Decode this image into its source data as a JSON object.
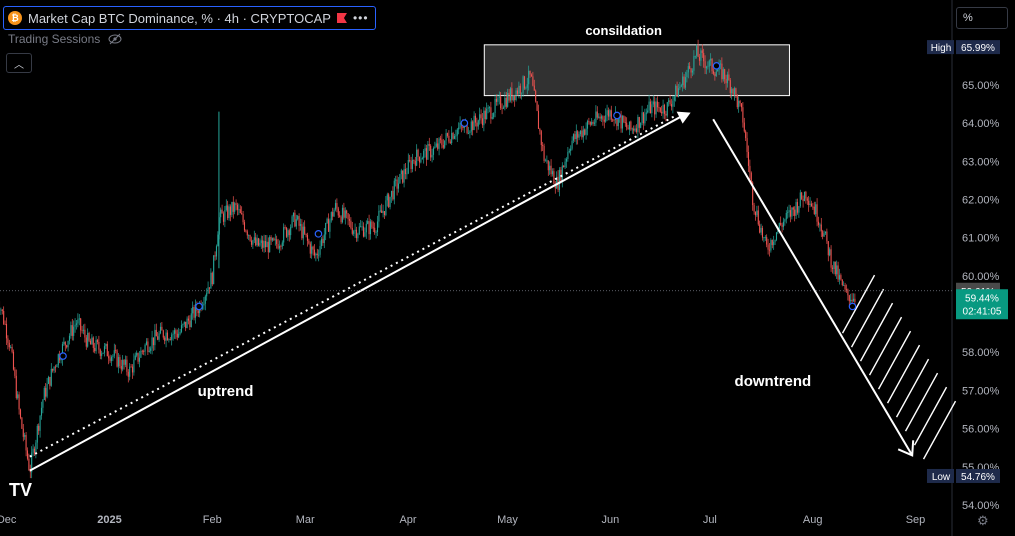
{
  "header": {
    "coin_icon": "bitcoin-icon",
    "title": "Market Cap BTC Dominance, % · 4h · CRYPTOCAP",
    "flag_icon": "flag-icon",
    "more_icon": "more-dots-icon",
    "sessions_label": "Trading Sessions",
    "sessions_icon": "eye-off-icon",
    "collapse_icon": "chevron-up-icon",
    "unit_box": "%"
  },
  "logo_text": "TV",
  "settings_icon": "gear-icon",
  "colors": {
    "up": "#26a69a",
    "down": "#ef5350",
    "arrow": "#ffffff",
    "box_fill": "#3a3a3a",
    "high_badge": "#1e2a4a",
    "last_badge": "#089981"
  },
  "chart_data": {
    "type": "candlestick",
    "interval": "4h",
    "y_unit": "%",
    "ylim": [
      54.0,
      66.7
    ],
    "y_ticks": [
      "54.00%",
      "55.00%",
      "56.00%",
      "57.00%",
      "58.00%",
      "59.00%",
      "60.00%",
      "61.00%",
      "62.00%",
      "63.00%",
      "64.00%",
      "65.00%"
    ],
    "x_ticks": [
      "Dec",
      "2025",
      "Feb",
      "Mar",
      "Apr",
      "May",
      "Jun",
      "Jul",
      "Aug",
      "Sep"
    ],
    "price_path": [
      {
        "x": "2024-11-28",
        "y": 59.6
      },
      {
        "x": "2024-12-02",
        "y": 58.2
      },
      {
        "x": "2024-12-05",
        "y": 56.3
      },
      {
        "x": "2024-12-08",
        "y": 54.9
      },
      {
        "x": "2024-12-12",
        "y": 56.8
      },
      {
        "x": "2024-12-16",
        "y": 57.8
      },
      {
        "x": "2024-12-22",
        "y": 58.8
      },
      {
        "x": "2024-12-26",
        "y": 58.2
      },
      {
        "x": "2025-01-01",
        "y": 58.0
      },
      {
        "x": "2025-01-07",
        "y": 57.5
      },
      {
        "x": "2025-01-12",
        "y": 58.2
      },
      {
        "x": "2025-01-17",
        "y": 58.5
      },
      {
        "x": "2025-01-22",
        "y": 58.5
      },
      {
        "x": "2025-01-28",
        "y": 59.2
      },
      {
        "x": "2025-02-01",
        "y": 60.0
      },
      {
        "x": "2025-02-03",
        "y": 61.5
      },
      {
        "x": "2025-02-08",
        "y": 61.8
      },
      {
        "x": "2025-02-14",
        "y": 60.8
      },
      {
        "x": "2025-02-20",
        "y": 60.8
      },
      {
        "x": "2025-02-26",
        "y": 61.5
      },
      {
        "x": "2025-03-04",
        "y": 60.5
      },
      {
        "x": "2025-03-10",
        "y": 61.8
      },
      {
        "x": "2025-03-16",
        "y": 61.2
      },
      {
        "x": "2025-03-22",
        "y": 61.3
      },
      {
        "x": "2025-03-28",
        "y": 62.3
      },
      {
        "x": "2025-04-03",
        "y": 63.1
      },
      {
        "x": "2025-04-09",
        "y": 63.3
      },
      {
        "x": "2025-04-15",
        "y": 63.8
      },
      {
        "x": "2025-04-21",
        "y": 64.0
      },
      {
        "x": "2025-04-27",
        "y": 64.4
      },
      {
        "x": "2025-05-03",
        "y": 64.8
      },
      {
        "x": "2025-05-08",
        "y": 65.2
      },
      {
        "x": "2025-05-12",
        "y": 63.1
      },
      {
        "x": "2025-05-16",
        "y": 62.4
      },
      {
        "x": "2025-05-20",
        "y": 63.5
      },
      {
        "x": "2025-05-26",
        "y": 64.0
      },
      {
        "x": "2025-06-01",
        "y": 64.3
      },
      {
        "x": "2025-06-07",
        "y": 63.8
      },
      {
        "x": "2025-06-13",
        "y": 64.4
      },
      {
        "x": "2025-06-18",
        "y": 64.4
      },
      {
        "x": "2025-06-23",
        "y": 65.1
      },
      {
        "x": "2025-06-27",
        "y": 65.8
      },
      {
        "x": "2025-07-01",
        "y": 65.5
      },
      {
        "x": "2025-07-05",
        "y": 65.3
      },
      {
        "x": "2025-07-08",
        "y": 64.9
      },
      {
        "x": "2025-07-11",
        "y": 64.1
      },
      {
        "x": "2025-07-14",
        "y": 62.0
      },
      {
        "x": "2025-07-18",
        "y": 60.7
      },
      {
        "x": "2025-07-22",
        "y": 61.3
      },
      {
        "x": "2025-07-26",
        "y": 61.7
      },
      {
        "x": "2025-07-30",
        "y": 62.2
      },
      {
        "x": "2025-08-03",
        "y": 61.5
      },
      {
        "x": "2025-08-07",
        "y": 60.3
      },
      {
        "x": "2025-08-11",
        "y": 59.5
      },
      {
        "x": "2025-08-14",
        "y": 59.44
      }
    ],
    "markers": [
      {
        "label": "High",
        "value": "65.99%",
        "y": 65.99
      },
      {
        "label": "",
        "value": "59.61%",
        "y": 59.61
      },
      {
        "label": "",
        "value": "59.44%",
        "sub": "02:41:05",
        "y": 59.44
      },
      {
        "label": "Low",
        "value": "54.76%",
        "y": 54.76
      }
    ],
    "annotations": {
      "consolidation_label": "consildation",
      "uptrend_label": "uptrend",
      "downtrend_label": "downtrend"
    }
  }
}
